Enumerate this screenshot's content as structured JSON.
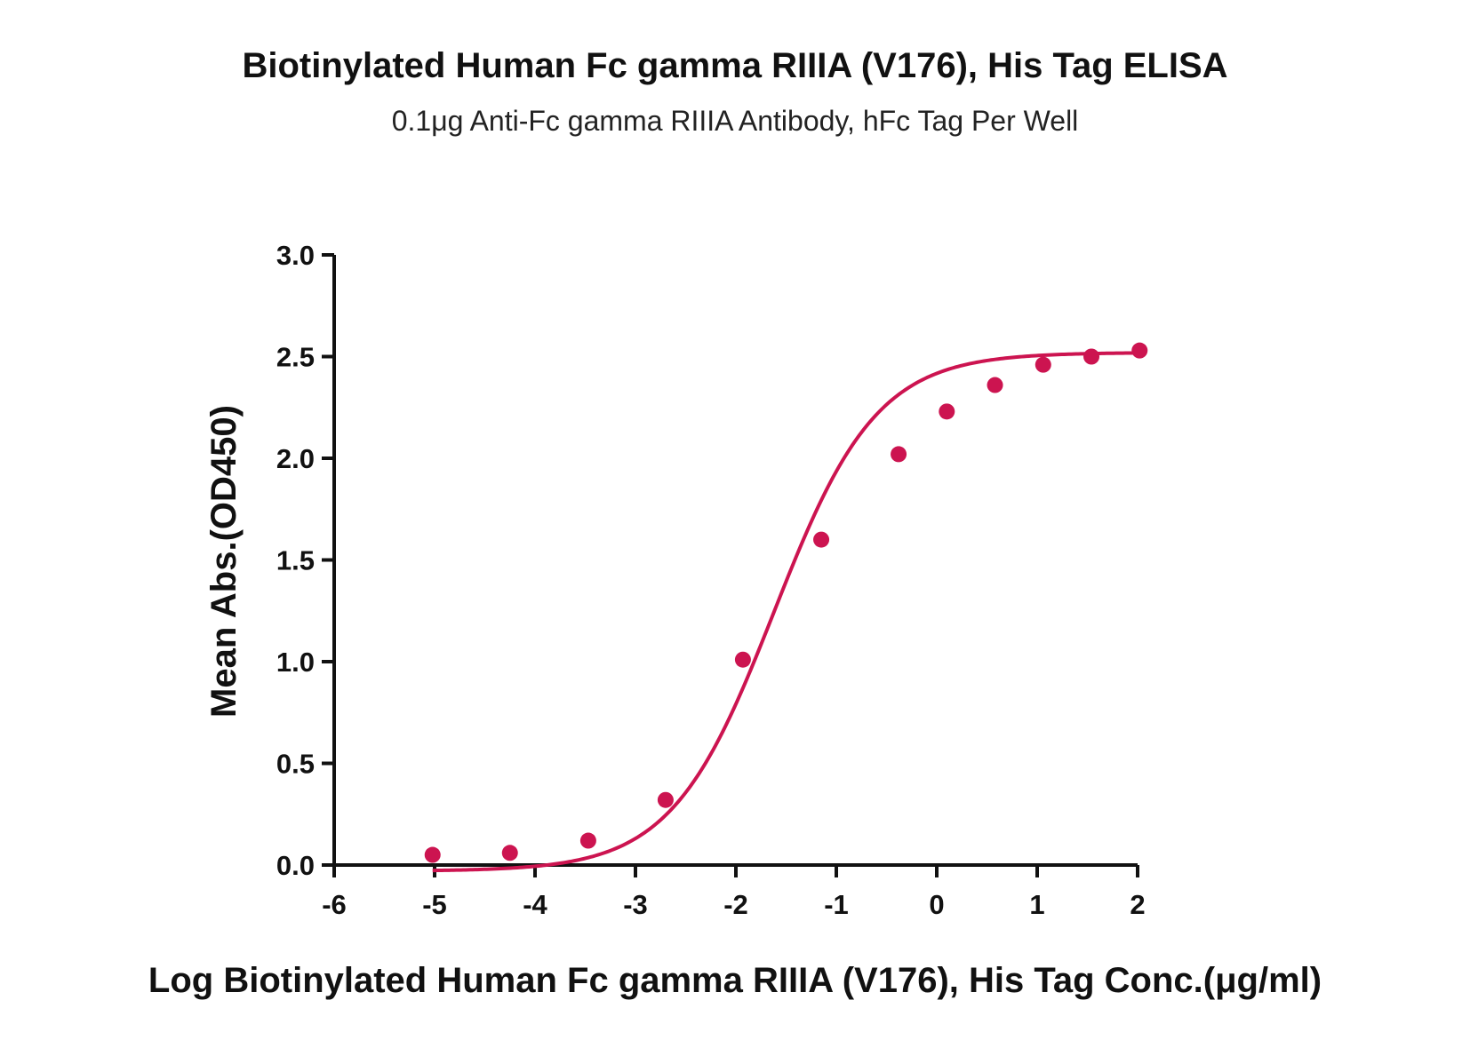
{
  "chart_data": {
    "type": "scatter",
    "title": "Biotinylated Human Fc gamma RIIIA (V176), His Tag ELISA",
    "subtitle": "0.1μg Anti-Fc gamma RIIIA Antibody, hFc Tag Per Well",
    "xlabel": "Log Biotinylated Human Fc gamma RIIIA (V176), His Tag Conc.(μg/ml)",
    "ylabel": "Mean Abs.(OD450)",
    "xlim": [
      -6,
      2
    ],
    "ylim": [
      0,
      3
    ],
    "x_ticks": [
      -6,
      -5,
      -4,
      -3,
      -2,
      -1,
      0,
      1,
      2
    ],
    "x_tick_labels": [
      "-6",
      "-5",
      "-4",
      "-3",
      "-2",
      "-1",
      "0",
      "1",
      "2"
    ],
    "y_ticks": [
      0,
      0.5,
      1,
      1.5,
      2,
      2.5,
      3
    ],
    "y_tick_labels": [
      "0.0",
      "0.5",
      "1.0",
      "1.5",
      "2.0",
      "2.5",
      "3.0"
    ],
    "grid": false,
    "color": "#cc1450",
    "series": [
      {
        "x": [
          -5.02,
          -4.25,
          -3.47,
          -2.7,
          -1.93,
          -1.15,
          -0.38,
          0.1,
          0.58,
          1.06,
          1.54,
          2.02
        ],
        "y": [
          0.05,
          0.06,
          0.12,
          0.32,
          1.01,
          1.6,
          2.02,
          2.23,
          2.36,
          2.46,
          2.5,
          2.53
        ]
      }
    ],
    "fit": {
      "type": "4PL",
      "bottom": -0.03,
      "top": 2.52,
      "logEC50": -1.62,
      "hill_slope": 0.85
    }
  }
}
